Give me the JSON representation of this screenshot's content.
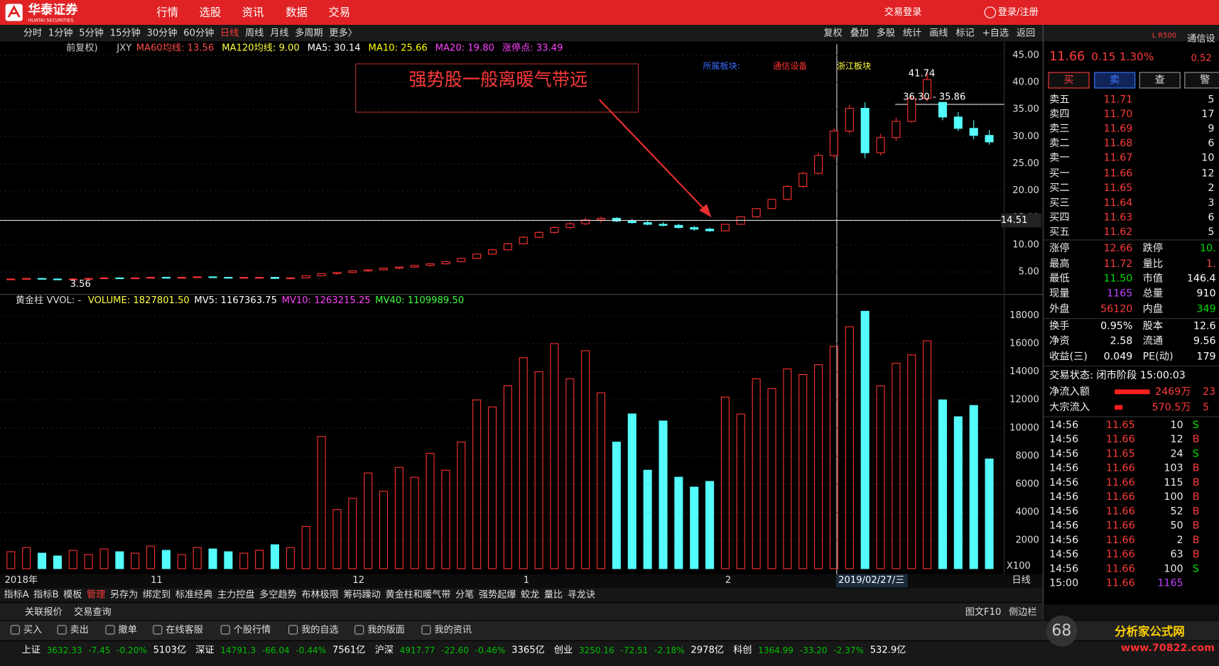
{
  "top_bar": {
    "brand": "华泰证券",
    "brand_en": "HUATAI SECURITIES",
    "menu": [
      "行情",
      "选股",
      "资讯",
      "数据",
      "交易"
    ],
    "trade_login": "交易登录",
    "login": "登录/注册"
  },
  "toolbar": {
    "periods": [
      "分时",
      "1分钟",
      "5分钟",
      "15分钟",
      "30分钟",
      "60分钟",
      "日线",
      "周线",
      "月线",
      "多周期",
      "更多〉"
    ],
    "tools": [
      "复权",
      "叠加",
      "多股",
      "统计",
      "画线",
      "标记",
      "+自选",
      "返回"
    ]
  },
  "info_bar": {
    "adjust": "前复权)",
    "code": "JXY",
    "items": [
      {
        "label": "MA60均线: 13.56",
        "color": "#ff4a4a"
      },
      {
        "label": "MA120均线: 9.00",
        "color": "#ffff40"
      },
      {
        "label": "MA5: 30.14",
        "color": "#ffffff"
      },
      {
        "label": "MA10: 25.66",
        "color": "#ffff00"
      },
      {
        "label": "MA20: 19.80",
        "color": "#ff40ff"
      },
      {
        "label": "涨停点: 33.49",
        "color": "#ff40ff"
      }
    ]
  },
  "annotation": {
    "text": "强势股一般离暖气带远",
    "sector_label": "所属板块:",
    "sectors": [
      "通信设备",
      "浙江板块"
    ]
  },
  "chart_data": {
    "type": "candlestick",
    "categories": [
      "2018年",
      null,
      null,
      null,
      null,
      null,
      null,
      null,
      null,
      "11",
      null,
      null,
      null,
      null,
      null,
      null,
      null,
      null,
      null,
      null,
      null,
      null,
      "12",
      null,
      null,
      null,
      null,
      null,
      null,
      null,
      null,
      null,
      null,
      "1",
      null,
      null,
      null,
      null,
      null,
      null,
      null,
      null,
      null,
      null,
      null,
      null,
      "2",
      null,
      null,
      null,
      null,
      null,
      null,
      null,
      null,
      null,
      null,
      null,
      null,
      null,
      null,
      null,
      null,
      null
    ],
    "candles": [
      [
        3.6,
        3.8,
        3.5,
        3.7
      ],
      [
        3.7,
        3.9,
        3.6,
        3.8
      ],
      [
        3.8,
        3.9,
        3.6,
        3.7
      ],
      [
        3.7,
        3.8,
        3.56,
        3.6
      ],
      [
        3.6,
        3.8,
        3.5,
        3.7
      ],
      [
        3.7,
        3.9,
        3.6,
        3.8
      ],
      [
        3.8,
        4.0,
        3.7,
        3.9
      ],
      [
        3.9,
        4.0,
        3.7,
        3.8
      ],
      [
        3.8,
        3.9,
        3.7,
        3.9
      ],
      [
        3.9,
        4.1,
        3.8,
        4.0
      ],
      [
        4.0,
        4.1,
        3.8,
        3.9
      ],
      [
        3.9,
        4.0,
        3.8,
        4.0
      ],
      [
        4.0,
        4.2,
        3.9,
        4.1
      ],
      [
        4.1,
        4.2,
        3.9,
        4.0
      ],
      [
        4.0,
        4.1,
        3.8,
        3.9
      ],
      [
        3.9,
        4.0,
        3.8,
        4.0
      ],
      [
        4.0,
        4.1,
        3.9,
        4.0
      ],
      [
        4.0,
        4.1,
        3.7,
        3.8
      ],
      [
        3.8,
        4.0,
        3.7,
        3.9
      ],
      [
        3.9,
        4.3,
        3.9,
        4.3
      ],
      [
        4.3,
        4.7,
        4.2,
        4.7
      ],
      [
        4.7,
        5.0,
        4.5,
        4.9
      ],
      [
        4.9,
        5.3,
        4.8,
        5.2
      ],
      [
        5.2,
        5.5,
        5.0,
        5.4
      ],
      [
        5.4,
        5.8,
        5.3,
        5.7
      ],
      [
        5.7,
        6.0,
        5.5,
        5.9
      ],
      [
        5.9,
        6.3,
        5.8,
        6.2
      ],
      [
        6.2,
        6.6,
        6.0,
        6.5
      ],
      [
        6.5,
        7.0,
        6.4,
        6.9
      ],
      [
        6.9,
        7.6,
        6.8,
        7.5
      ],
      [
        7.5,
        8.4,
        7.4,
        8.3
      ],
      [
        8.3,
        9.3,
        8.2,
        9.1
      ],
      [
        9.1,
        10.4,
        9.0,
        10.2
      ],
      [
        10.2,
        11.6,
        10.1,
        11.4
      ],
      [
        11.4,
        12.5,
        11.2,
        12.3
      ],
      [
        12.3,
        13.4,
        12.0,
        13.2
      ],
      [
        13.2,
        14.2,
        12.9,
        13.9
      ],
      [
        13.9,
        15.0,
        13.6,
        14.6
      ],
      [
        14.6,
        15.2,
        14.1,
        14.9
      ],
      [
        14.9,
        15.1,
        14.2,
        14.4
      ],
      [
        14.4,
        14.8,
        13.9,
        14.1
      ],
      [
        14.1,
        14.6,
        13.6,
        13.8
      ],
      [
        13.8,
        14.2,
        13.4,
        13.6
      ],
      [
        13.6,
        13.9,
        13.0,
        13.2
      ],
      [
        13.2,
        13.5,
        12.6,
        12.9
      ],
      [
        12.9,
        13.2,
        12.4,
        12.6
      ],
      [
        12.6,
        13.9,
        12.5,
        13.8
      ],
      [
        13.8,
        15.3,
        13.7,
        15.2
      ],
      [
        15.2,
        16.8,
        15.0,
        16.7
      ],
      [
        16.7,
        18.5,
        16.6,
        18.4
      ],
      [
        18.4,
        21.0,
        18.2,
        20.8
      ],
      [
        20.8,
        23.5,
        20.5,
        23.2
      ],
      [
        23.2,
        27.0,
        23.0,
        26.5
      ],
      [
        26.5,
        31.5,
        26.0,
        31.0
      ],
      [
        31.0,
        35.8,
        30.5,
        35.2
      ],
      [
        35.2,
        36.3,
        26.0,
        27.0
      ],
      [
        27.0,
        30.5,
        26.5,
        29.8
      ],
      [
        29.8,
        33.5,
        29.2,
        32.8
      ],
      [
        32.8,
        37.5,
        32.5,
        37.0
      ],
      [
        37.0,
        41.74,
        36.5,
        40.5
      ],
      [
        36.3,
        36.3,
        33.0,
        33.6
      ],
      [
        33.6,
        34.5,
        31.0,
        31.5
      ],
      [
        31.5,
        33.0,
        29.5,
        30.2
      ],
      [
        30.2,
        31.2,
        28.5,
        29.0
      ]
    ],
    "up_color": "#ff3232",
    "down_color": "#54fcfc",
    "ylim": [
      2,
      47
    ],
    "yticks": [
      {
        "value": 5,
        "label": "5.00"
      },
      {
        "value": 10,
        "label": "10.00"
      },
      {
        "value": 15,
        "label": "15.00"
      },
      {
        "value": 20,
        "label": "20.00"
      },
      {
        "value": 25,
        "label": "25.00"
      },
      {
        "value": 30,
        "label": "30.00"
      },
      {
        "value": 35,
        "label": "35.00"
      },
      {
        "value": 40,
        "label": "40.00"
      },
      {
        "value": 45,
        "label": "45.00"
      }
    ],
    "high_label": 41.74,
    "range_label": "36.30 - 35.86",
    "low_label": 3.56,
    "cursor": {
      "date": "2019/02/27/三",
      "price": 14.51
    },
    "period_label": "日线",
    "volume": {
      "title": "黄金柱 VVOL: -",
      "items": [
        {
          "label": "VOLUME: 1827801.50",
          "color": "#ffff40"
        },
        {
          "label": "MV5: 1167363.75",
          "color": "#ffffff"
        },
        {
          "label": "MV10: 1263215.25",
          "color": "#ff40ff"
        },
        {
          "label": "MV40: 1109989.50",
          "color": "#40ff40"
        }
      ],
      "values": [
        1200,
        1500,
        1100,
        900,
        1300,
        1000,
        1400,
        1200,
        1100,
        1600,
        1300,
        1000,
        1500,
        1400,
        1200,
        1100,
        1300,
        1700,
        1500,
        3000,
        9400,
        4200,
        5000,
        6800,
        5500,
        7200,
        6500,
        8200,
        7000,
        9000,
        12000,
        11500,
        13000,
        15000,
        14000,
        16000,
        13500,
        15500,
        12500,
        9000,
        11000,
        7000,
        10500,
        6500,
        5800,
        6200,
        12200,
        11000,
        13500,
        12800,
        14200,
        13800,
        14500,
        15800,
        17200,
        18300,
        13000,
        14600,
        15200,
        16200,
        12000,
        10800,
        11600,
        7800
      ],
      "ylim": [
        0,
        19000
      ],
      "yticks": [
        2000,
        4000,
        6000,
        8000,
        10000,
        12000,
        14000,
        16000,
        18000
      ],
      "unit": "X100"
    }
  },
  "indicator_tabs": [
    "指标A",
    "指标B",
    "模板",
    "管理",
    "另存为",
    "绑定到",
    "标准经典",
    "主力控盘",
    "多空趋势",
    "布林极限",
    "筹码躁动",
    "黄金柱和暖气带",
    "分笔",
    "强势起爆",
    "蛟龙",
    "量比",
    "寻龙诀"
  ],
  "panel_tabs": {
    "left": [
      "关联报价",
      "交易查询"
    ],
    "right": [
      "图文F10",
      "侧边栏"
    ]
  },
  "quick_bar": [
    "买入",
    "卖出",
    "撤单",
    "在线客服",
    "个股行情",
    "我的自选",
    "我的版面",
    "我的资讯"
  ],
  "status_bar": [
    {
      "name": "上证",
      "index": "3632.33",
      "change": "-7.45",
      "pct": "-0.20%",
      "amount": "5103亿"
    },
    {
      "name": "深证",
      "index": "14791.3",
      "change": "-66.04",
      "pct": "-0.44%",
      "amount": "7561亿"
    },
    {
      "name": "沪深",
      "index": "4917.77",
      "change": "-22.60",
      "pct": "-0.46%",
      "amount": "3365亿"
    },
    {
      "name": "创业",
      "index": "3250.16",
      "change": "-72.51",
      "pct": "-2.18%",
      "amount": "2978亿"
    },
    {
      "name": "科创",
      "index": "1364.99",
      "change": "-33.20",
      "pct": "-2.37%",
      "amount": "532.9亿"
    }
  ],
  "quote": {
    "header": "通信设",
    "tag": "L R500",
    "side_value": "0.52",
    "price": "11.66",
    "change": "0.15",
    "pct": "1.30%",
    "buttons": [
      "买",
      "卖",
      "查",
      "警"
    ],
    "book": [
      {
        "label": "卖五",
        "price": "11.71",
        "volume": "5"
      },
      {
        "label": "卖四",
        "price": "11.70",
        "volume": "17"
      },
      {
        "label": "卖三",
        "price": "11.69",
        "volume": "9"
      },
      {
        "label": "卖二",
        "price": "11.68",
        "volume": "6"
      },
      {
        "label": "卖一",
        "price": "11.67",
        "volume": "10"
      },
      {
        "label": "买一",
        "price": "11.66",
        "volume": "12"
      },
      {
        "label": "买二",
        "price": "11.65",
        "volume": "2"
      },
      {
        "label": "买三",
        "price": "11.64",
        "volume": "3"
      },
      {
        "label": "买四",
        "price": "11.63",
        "volume": "6"
      },
      {
        "label": "买五",
        "price": "11.62",
        "volume": "5"
      }
    ],
    "stats": [
      [
        "涨停",
        "12.66",
        "跌停",
        "10."
      ],
      [
        "最高",
        "11.72",
        "量比",
        "1."
      ],
      [
        "最低",
        "11.50",
        "市值",
        "146.4"
      ],
      [
        "现量",
        "1165",
        "总量",
        "910"
      ],
      [
        "外盘",
        "56120",
        "内盘",
        "349"
      ],
      [
        "换手",
        "0.95%",
        "股本",
        "12.6"
      ],
      [
        "净资",
        "2.58",
        "流通",
        "9.56"
      ],
      [
        "收益(三)",
        "0.049",
        "PE(动)",
        "179"
      ]
    ],
    "status": "交易状态: 闭市阶段 15:00:03",
    "flows": [
      {
        "label": "净流入额",
        "value": "2469万",
        "extra": "23"
      },
      {
        "label": "大宗流入",
        "value": "570.5万",
        "extra": "5"
      }
    ],
    "ticks": [
      [
        "14:56",
        "11.65",
        "10",
        "S"
      ],
      [
        "14:56",
        "11.66",
        "12",
        "B"
      ],
      [
        "14:56",
        "11.65",
        "24",
        "S"
      ],
      [
        "14:56",
        "11.66",
        "103",
        "B"
      ],
      [
        "14:56",
        "11.66",
        "115",
        "B"
      ],
      [
        "14:56",
        "11.66",
        "100",
        "B"
      ],
      [
        "14:56",
        "11.66",
        "52",
        "B"
      ],
      [
        "14:56",
        "11.66",
        "50",
        "B"
      ],
      [
        "14:56",
        "11.66",
        "2",
        "B"
      ],
      [
        "14:56",
        "11.66",
        "63",
        "B"
      ],
      [
        "14:56",
        "11.66",
        "100",
        "S"
      ],
      [
        "15:00",
        "11.66",
        "1165"
      ]
    ],
    "footer": {
      "number": "68",
      "site": "分析家公式网",
      "url": "www.70822.com"
    }
  }
}
